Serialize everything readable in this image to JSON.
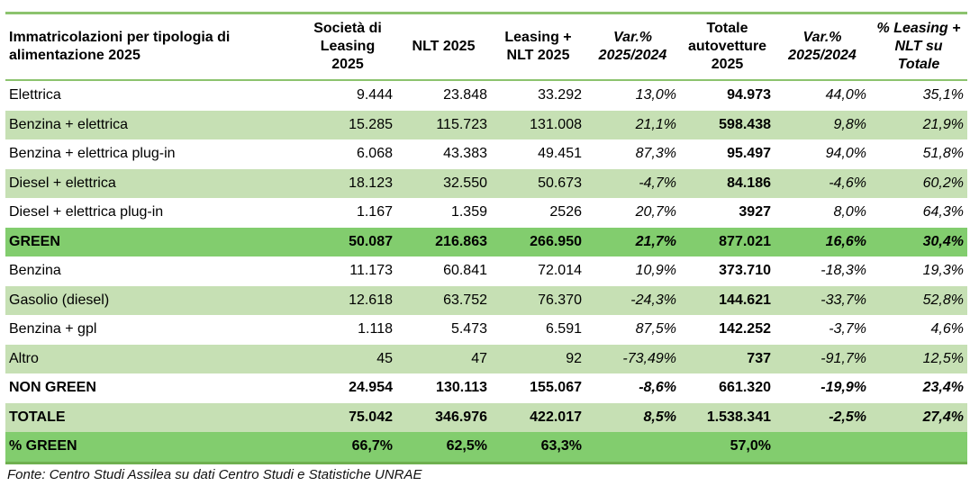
{
  "headers": [
    "Immatricolazioni per tipologia di alimentazione 2025",
    "Società di Leasing 2025",
    "NLT 2025",
    "Leasing + NLT 2025",
    "Var.% 2025/2024",
    "Totale autovetture 2025",
    "Var.% 2025/2024",
    "% Leasing + NLT su Totale"
  ],
  "rows": [
    {
      "label": "Elettrica",
      "values": [
        "9.444",
        "23.848",
        "33.292",
        "13,0%",
        "94.973",
        "44,0%",
        "35,1%"
      ],
      "style": "white"
    },
    {
      "label": "Benzina + elettrica",
      "values": [
        "15.285",
        "115.723",
        "131.008",
        "21,1%",
        "598.438",
        "9,8%",
        "21,9%"
      ],
      "style": "light"
    },
    {
      "label": "Benzina + elettrica plug-in",
      "values": [
        "6.068",
        "43.383",
        "49.451",
        "87,3%",
        "95.497",
        "94,0%",
        "51,8%"
      ],
      "style": "white"
    },
    {
      "label": "Diesel + elettrica",
      "values": [
        "18.123",
        "32.550",
        "50.673",
        "-4,7%",
        "84.186",
        "-4,6%",
        "60,2%"
      ],
      "style": "light"
    },
    {
      "label": "Diesel + elettrica plug-in",
      "values": [
        "1.167",
        "1.359",
        "2526",
        "20,7%",
        "3927",
        "8,0%",
        "64,3%"
      ],
      "style": "white"
    },
    {
      "label": "GREEN",
      "values": [
        "50.087",
        "216.863",
        "266.950",
        "21,7%",
        "877.021",
        "16,6%",
        "30,4%"
      ],
      "style": "dark bold"
    },
    {
      "label": "Benzina",
      "values": [
        "11.173",
        "60.841",
        "72.014",
        "10,9%",
        "373.710",
        "-18,3%",
        "19,3%"
      ],
      "style": "white"
    },
    {
      "label": "Gasolio (diesel)",
      "values": [
        "12.618",
        "63.752",
        "76.370",
        "-24,3%",
        "144.621",
        "-33,7%",
        "52,8%"
      ],
      "style": "light"
    },
    {
      "label": "Benzina + gpl",
      "values": [
        "1.118",
        "5.473",
        "6.591",
        "87,5%",
        "142.252",
        "-3,7%",
        "4,6%"
      ],
      "style": "white"
    },
    {
      "label": "Altro",
      "values": [
        "45",
        "47",
        "92",
        "-73,49%",
        "737",
        "-91,7%",
        "12,5%"
      ],
      "style": "light"
    },
    {
      "label": "NON GREEN",
      "values": [
        "24.954",
        "130.113",
        "155.067",
        "-8,6%",
        "661.320",
        "-19,9%",
        "23,4%"
      ],
      "style": "white bold"
    },
    {
      "label": "TOTALE",
      "values": [
        "75.042",
        "346.976",
        "422.017",
        "8,5%",
        "1.538.341",
        "-2,5%",
        "27,4%"
      ],
      "style": "light bold"
    },
    {
      "label": "% GREEN",
      "values": [
        "66,7%",
        "62,5%",
        "63,3%",
        "",
        "57,0%",
        "",
        ""
      ],
      "style": "dark bold"
    }
  ],
  "source": "Fonte: Centro Studi Assilea su dati Centro Studi e Statistiche UNRAE",
  "colors": {
    "light_row": "#c6e0b4",
    "green_row": "#82cd6e",
    "rule": "#8cc36e"
  }
}
